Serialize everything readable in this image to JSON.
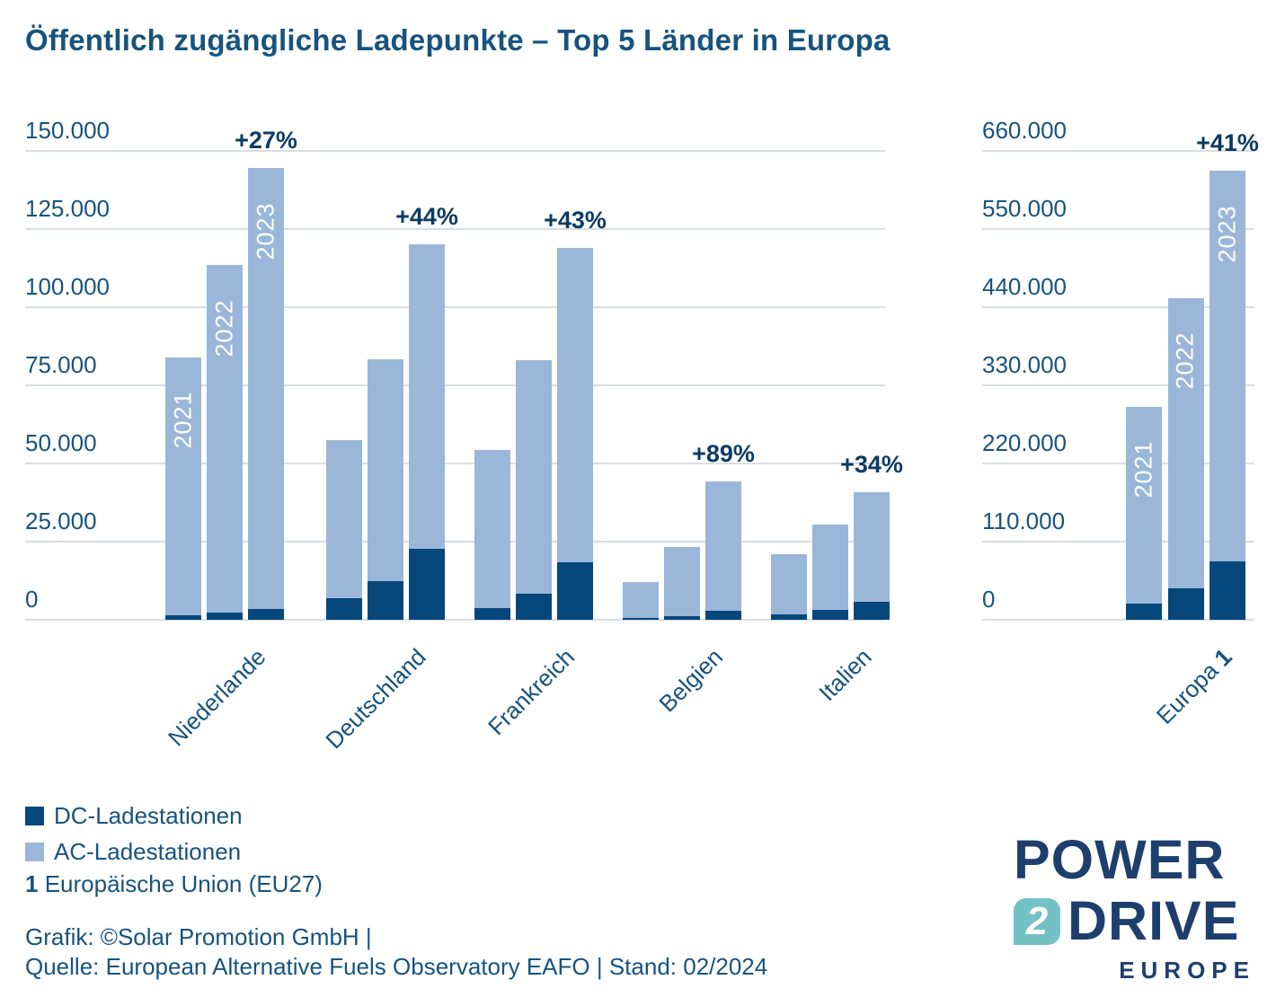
{
  "title": "Öffentlich zugängliche Ladepunkte – Top 5 Länder in Europa",
  "colors": {
    "text": "#17537E",
    "pct": "#0C3B64",
    "ac": "#9AB7D9",
    "dc": "#06477C",
    "grid": "#D9DEE3",
    "year_text": "#FFFFFF",
    "logo_navy": "#1E3F6D",
    "logo_teal": "#72C1C5",
    "background": "#FFFFFF"
  },
  "chart_data": [
    {
      "type": "bar",
      "stacked": true,
      "title": "",
      "categories": [
        "Niederlande",
        "Deutschland",
        "Frankreich",
        "Belgien",
        "Italien"
      ],
      "years": [
        "2021",
        "2022",
        "2023"
      ],
      "series": [
        {
          "name": "DC-Ladestationen",
          "values_by_country": [
            [
              1500,
              2300,
              3400
            ],
            [
              7000,
              12400,
              22700
            ],
            [
              3700,
              8300,
              18400
            ],
            [
              600,
              1100,
              2900
            ],
            [
              1700,
              3200,
              5700
            ]
          ]
        },
        {
          "name": "AC-Ladestationen",
          "values_by_country": [
            [
              82500,
              111200,
              141100
            ],
            [
              50500,
              70900,
              97300
            ],
            [
              50600,
              74700,
              100600
            ],
            [
              11500,
              22200,
              41400
            ],
            [
              19300,
              27300,
              35100
            ]
          ]
        }
      ],
      "totals": [
        [
          84000,
          113500,
          144500
        ],
        [
          57500,
          83300,
          120000
        ],
        [
          54300,
          83000,
          119000
        ],
        [
          12100,
          23300,
          44300
        ],
        [
          21000,
          30500,
          40800
        ]
      ],
      "growth_labels": [
        "+27%",
        "+44%",
        "+43%",
        "+89%",
        "+34%"
      ],
      "ticks": [
        {
          "label": "150.000",
          "value": 150000
        },
        {
          "label": "125.000",
          "value": 125000
        },
        {
          "label": "100.000",
          "value": 100000
        },
        {
          "label": "75.000",
          "value": 75000
        },
        {
          "label": "50.000",
          "value": 50000
        },
        {
          "label": "25.000",
          "value": 25000
        },
        {
          "label": "0",
          "value": 0
        }
      ],
      "ylim": [
        0,
        150000
      ],
      "grid": true,
      "year_labels_on_group": 0
    },
    {
      "type": "bar",
      "stacked": true,
      "title": "",
      "categories": [
        "Europa"
      ],
      "category_bold_suffix": "1",
      "years": [
        "2021",
        "2022",
        "2023"
      ],
      "series": [
        {
          "name": "DC-Ladestationen",
          "values_by_country": [
            [
              23000,
              44000,
              82000
            ]
          ]
        },
        {
          "name": "AC-Ladestationen",
          "values_by_country": [
            [
              277000,
              409000,
              550000
            ]
          ]
        }
      ],
      "totals": [
        [
          300000,
          453000,
          632000
        ]
      ],
      "growth_labels": [
        "+41%"
      ],
      "ticks": [
        {
          "label": "660.000",
          "value": 660000
        },
        {
          "label": "550.000",
          "value": 550000
        },
        {
          "label": "440.000",
          "value": 440000
        },
        {
          "label": "330.000",
          "value": 330000
        },
        {
          "label": "220.000",
          "value": 220000
        },
        {
          "label": "110.000",
          "value": 110000
        },
        {
          "label": "0",
          "value": 0
        }
      ],
      "ylim": [
        0,
        660000
      ],
      "grid": true,
      "year_labels_on_group": 0
    }
  ],
  "legend": [
    {
      "label": "DC-Ladestationen",
      "color_key": "dc"
    },
    {
      "label": "AC-Ladestationen",
      "color_key": "ac"
    }
  ],
  "footnote": {
    "marker": "1",
    "text": " Europäische Union (EU27)"
  },
  "credits": [
    "Grafik: ©Solar Promotion GmbH |",
    "Quelle: European Alternative Fuels Observatory EAFO | Stand: 02/2024"
  ],
  "logo": {
    "line1": "POWER",
    "badge": "2",
    "line2": "DRIVE",
    "line3": "EUROPE"
  }
}
